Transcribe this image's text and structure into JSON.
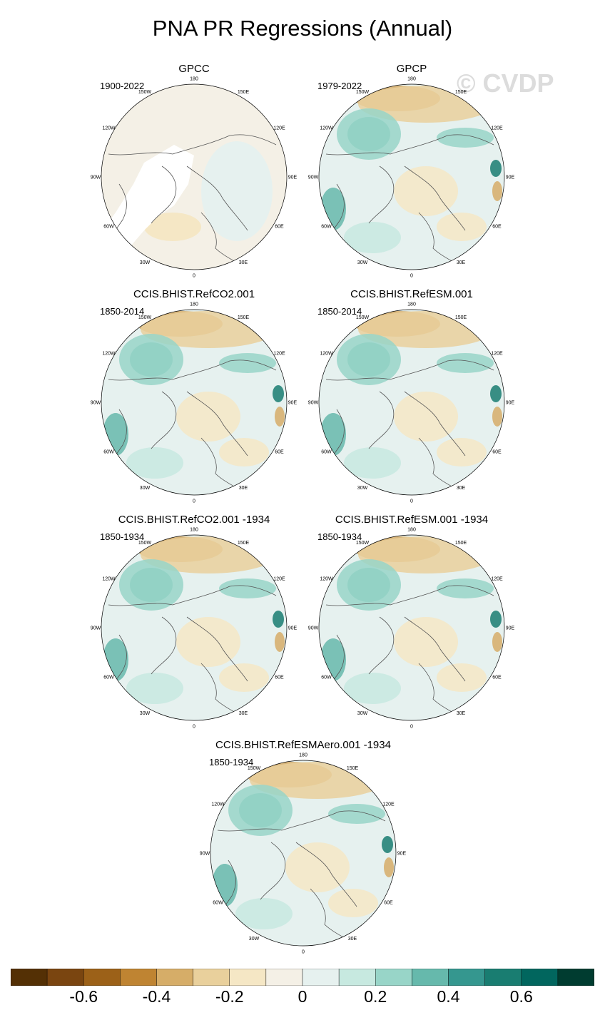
{
  "title": "PNA PR Regressions (Annual)",
  "watermark": "© CVDP",
  "longitude_labels": [
    "180",
    "150E",
    "120E",
    "90E",
    "60E",
    "30E",
    "0",
    "30W",
    "60W",
    "90W",
    "120W",
    "150W"
  ],
  "panels": [
    {
      "title": "GPCC",
      "period": "1900-2022",
      "masked_greenland": true
    },
    {
      "title": "GPCP",
      "period": "1979-2022",
      "masked_greenland": false
    },
    {
      "title": "CCIS.BHIST.RefCO2.001",
      "period": "1850-2014",
      "masked_greenland": false
    },
    {
      "title": "CCIS.BHIST.RefESM.001",
      "period": "1850-2014",
      "masked_greenland": false
    },
    {
      "title": "CCIS.BHIST.RefCO2.001 -1934",
      "period": "1850-1934",
      "masked_greenland": false
    },
    {
      "title": "CCIS.BHIST.RefESM.001 -1934",
      "period": "1850-1934",
      "masked_greenland": false
    },
    {
      "title": "CCIS.BHIST.RefESMAero.001 -1934",
      "period": "1850-1934",
      "masked_greenland": false
    }
  ],
  "colorbar": {
    "colors": [
      "#543005",
      "#7a4510",
      "#9c6118",
      "#bf8432",
      "#d6ad68",
      "#e9d09c",
      "#f5e7c5",
      "#f4f0e6",
      "#e6f1ef",
      "#c7e9e0",
      "#98d5c8",
      "#66b9ac",
      "#35978f",
      "#197d71",
      "#01665e",
      "#003c30"
    ],
    "tick_labels": [
      "-0.6",
      "-0.4",
      "-0.2",
      "0",
      "0.2",
      "0.4",
      "0.6"
    ]
  }
}
